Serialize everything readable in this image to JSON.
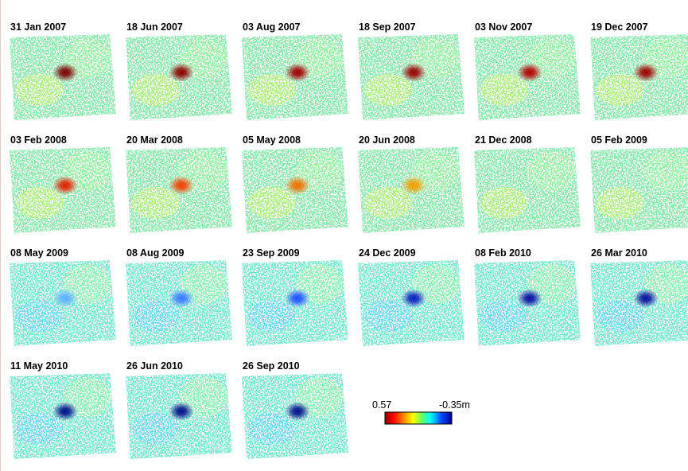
{
  "panels": [
    "31 Jan 2007",
    "18 Jun 2007",
    "03 Aug 2007",
    "18 Sep 2007",
    "03 Nov 2007",
    "19 Dec 2007",
    "03 Feb 2008",
    "20 Mar 2008",
    "05 May 2008",
    "20 Jun 2008",
    "21 Dec 2008",
    "05 Feb 2009",
    "08 May 2009",
    "08 Aug 2009",
    "23 Sep 2009",
    "24 Dec 2009",
    "08 Feb 2010",
    "26 Mar 2010",
    "11 May 2010",
    "26 Jun 2010",
    "26 Sep 2010"
  ],
  "colorbar": {
    "left_label": "0.57",
    "right_label": "-0.35m"
  }
}
